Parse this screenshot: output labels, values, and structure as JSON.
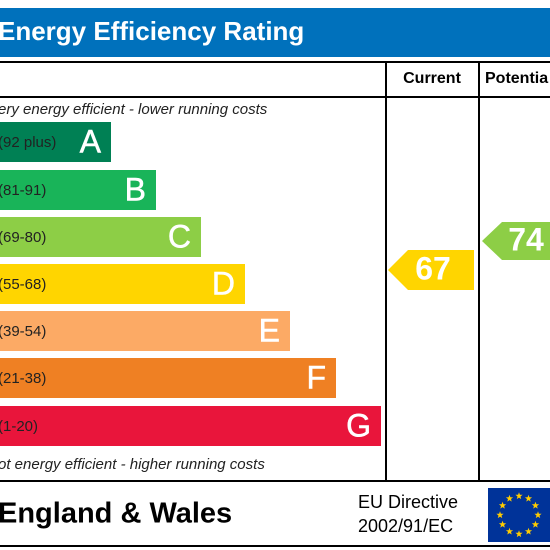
{
  "header": {
    "title": "Energy Efficiency Rating"
  },
  "columns": {
    "current": "Current",
    "potential": "Potentia"
  },
  "scale": {
    "top_note": "ery energy efficient - lower running costs",
    "bottom_note": "ot energy efficient - higher running costs",
    "bands": [
      {
        "range": "(92 plus)",
        "letter": "A"
      },
      {
        "range": "(81-91)",
        "letter": "B"
      },
      {
        "range": "(69-80)",
        "letter": "C"
      },
      {
        "range": "(55-68)",
        "letter": "D"
      },
      {
        "range": "(39-54)",
        "letter": "E"
      },
      {
        "range": "(21-38)",
        "letter": "F"
      },
      {
        "range": "(1-20)",
        "letter": "G"
      }
    ]
  },
  "ratings": {
    "current": "67",
    "potential": "74"
  },
  "footer": {
    "region": "England & Wales",
    "directive_line1": "EU Directive",
    "directive_line2": "2002/91/EC"
  }
}
